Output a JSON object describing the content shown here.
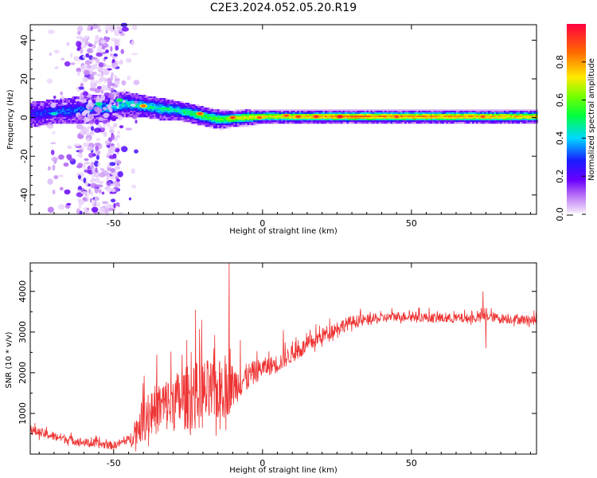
{
  "figure": {
    "title": "C2E3.2024.052.05.20.R19"
  },
  "chart_data": [
    {
      "type": "heatmap",
      "xlabel": "Height of straight line (km)",
      "ylabel": "Frequency (Hz)",
      "xlim": [
        -78,
        92
      ],
      "ylim": [
        -50,
        48
      ],
      "xticks": [
        -50,
        0,
        50
      ],
      "xtick_labels": [
        "-50",
        "0",
        "50"
      ],
      "yticks": [
        -40,
        -20,
        0,
        20,
        40
      ],
      "ytick_labels": [
        "-40",
        "-20",
        "0",
        "20",
        "40"
      ],
      "colorbar": {
        "label": "Normalized spectral amplitude",
        "ticks": [
          0.0,
          0.2,
          0.4,
          0.6,
          0.8
        ],
        "tick_labels": [
          "0.0",
          "0.2",
          "0.4",
          "0.6",
          "0.8"
        ],
        "range": [
          0,
          1
        ],
        "colormap": "gist_rainbow_r"
      },
      "colormap_stops": [
        {
          "v": 0.0,
          "color": "#ffffff"
        },
        {
          "v": 0.02,
          "color": "#ecd8fb"
        },
        {
          "v": 0.1,
          "color": "#b870f5"
        },
        {
          "v": 0.18,
          "color": "#6a00ff"
        },
        {
          "v": 0.28,
          "color": "#1a1aff"
        },
        {
          "v": 0.4,
          "color": "#00d8ff"
        },
        {
          "v": 0.52,
          "color": "#00ff3c"
        },
        {
          "v": 0.62,
          "color": "#76ff00"
        },
        {
          "v": 0.72,
          "color": "#ffea00"
        },
        {
          "v": 0.85,
          "color": "#ff6a00"
        },
        {
          "v": 1.0,
          "color": "#ff0040"
        }
      ],
      "ridge": {
        "x": [
          -78,
          -70,
          -60,
          -52,
          -46,
          -40,
          -34,
          -28,
          -22,
          -18,
          -14,
          -10,
          -5,
          0,
          5,
          10,
          20,
          30,
          50,
          70,
          92
        ],
        "center": [
          1.5,
          3,
          4,
          5,
          7,
          6,
          4.5,
          3.5,
          1.5,
          0,
          -1,
          -0.5,
          0,
          0.5,
          0.5,
          0.5,
          0.5,
          0.5,
          0.5,
          0.5,
          0.5
        ],
        "amp": [
          0.25,
          0.3,
          0.32,
          0.38,
          0.42,
          0.45,
          0.45,
          0.45,
          0.55,
          0.55,
          0.55,
          0.65,
          0.7,
          0.72,
          0.72,
          0.75,
          0.8,
          0.85,
          0.82,
          0.8,
          0.75
        ],
        "halfwidth": [
          4,
          4,
          4.5,
          4.5,
          4,
          3.5,
          3.5,
          3,
          3,
          3,
          3,
          2.5,
          2.5,
          2,
          2,
          2,
          2,
          2,
          2,
          2,
          2
        ]
      },
      "hotspots": [
        {
          "x": -40,
          "y": 6,
          "v": 0.86
        },
        {
          "x": -21,
          "y": 2,
          "v": 0.9
        },
        {
          "x": -10,
          "y": 0,
          "v": 0.92
        },
        {
          "x": -1,
          "y": 0,
          "v": 0.88
        },
        {
          "x": 8,
          "y": 1,
          "v": 0.9
        },
        {
          "x": 12,
          "y": 0.5,
          "v": 0.92
        },
        {
          "x": 18,
          "y": 0.5,
          "v": 0.95
        },
        {
          "x": 26,
          "y": 0.5,
          "v": 1.0
        },
        {
          "x": 45,
          "y": 0.5,
          "v": 0.92
        },
        {
          "x": 74,
          "y": 0.5,
          "v": 0.9
        },
        {
          "x": -48,
          "y": 9,
          "v": 0.55
        },
        {
          "x": -55,
          "y": 7,
          "v": 0.5
        },
        {
          "x": -70,
          "y": 2,
          "v": 0.45
        }
      ],
      "noise_column": {
        "x_range": [
          -72,
          -42
        ],
        "core_x": [
          -62,
          -48
        ],
        "density": "high"
      }
    },
    {
      "type": "line",
      "xlabel": "Height of straight line (km)",
      "ylabel": "SNR (10 * v/v)",
      "xlim": [
        -78,
        92
      ],
      "ylim": [
        0,
        4700
      ],
      "xticks": [
        -50,
        0,
        50
      ],
      "xtick_labels": [
        "-50",
        "0",
        "50"
      ],
      "yticks": [
        1000,
        2000,
        3000,
        4000
      ],
      "ytick_labels": [
        "1000",
        "2000",
        "3000",
        "4000"
      ],
      "color": "#ee3333",
      "baseline": {
        "x": [
          -78,
          -70,
          -60,
          -50,
          -44,
          -40,
          -35,
          -30,
          -25,
          -20,
          -15,
          -12,
          -10,
          -5,
          0,
          5,
          10,
          15,
          20,
          25,
          30,
          35,
          40,
          45,
          50,
          60,
          70,
          75,
          80,
          85,
          92
        ],
        "y": [
          550,
          400,
          250,
          180,
          350,
          700,
          950,
          1050,
          1150,
          1200,
          1300,
          1400,
          1500,
          1800,
          2050,
          2150,
          2400,
          2600,
          2850,
          3050,
          3200,
          3250,
          3300,
          3350,
          3350,
          3300,
          3300,
          3350,
          3300,
          3280,
          3250
        ]
      },
      "noise_amplitude": {
        "x": [
          -78,
          -45,
          -40,
          -20,
          -12,
          -8,
          0,
          20,
          40,
          92
        ],
        "amp": [
          150,
          120,
          700,
          1100,
          900,
          500,
          300,
          250,
          150,
          150
        ]
      },
      "spikes": [
        {
          "x": -35.5,
          "y": 2450
        },
        {
          "x": -22.5,
          "y": 3550
        },
        {
          "x": -20.5,
          "y": 3300
        },
        {
          "x": -11.2,
          "y": 4700
        },
        {
          "x": -7.5,
          "y": 2800
        },
        {
          "x": 7,
          "y": 3050
        },
        {
          "x": 74,
          "y": 4000
        },
        {
          "x": 75,
          "y": 2600
        }
      ]
    }
  ]
}
